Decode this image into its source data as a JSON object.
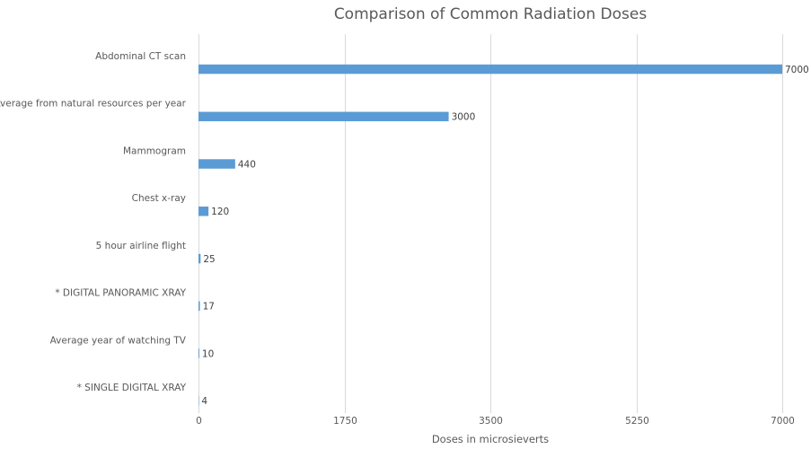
{
  "chart_data": {
    "type": "bar",
    "orientation": "horizontal",
    "title": "Comparison of Common Radiation Doses",
    "xlabel": "Doses in microsieverts",
    "ylabel": "",
    "categories": [
      "Abdominal CT scan",
      "Average from natural resources per year",
      "Mammogram",
      "Chest x-ray",
      "5 hour airline flight",
      "* DIGITAL PANORAMIC XRAY",
      "Average year of watching TV",
      "* SINGLE DIGITAL XRAY"
    ],
    "values": [
      7000,
      3000,
      440,
      120,
      25,
      17,
      10,
      4
    ],
    "data_labels": [
      "7000",
      "3000",
      "440",
      "120",
      "25",
      "17",
      "10",
      "4"
    ],
    "xlim": [
      0,
      7000
    ],
    "ticks": [
      0,
      1750,
      3500,
      5250,
      7000
    ],
    "tick_labels": [
      "0",
      "1750",
      "3500",
      "5250",
      "7000"
    ],
    "grid": true,
    "bar_color": "#5b9bd5",
    "grid_color": "#d9d9d9"
  }
}
